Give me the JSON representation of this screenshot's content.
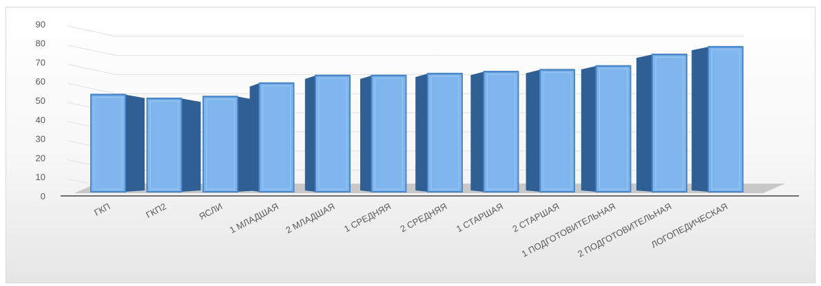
{
  "chart_data": {
    "type": "bar",
    "style": "3d-column",
    "title": "",
    "xlabel": "",
    "ylabel": "",
    "ylim": [
      0,
      90
    ],
    "yticks": [
      0,
      10,
      20,
      30,
      40,
      50,
      60,
      70,
      80,
      90
    ],
    "grid": true,
    "legend": "none",
    "categories": [
      "ГКП",
      "ГКП2",
      "ЯСЛИ",
      "1 МЛАДШАЯ",
      "2 МЛАДШАЯ",
      "1 СРЕДНЯЯ",
      "2 СРЕДНЯЯ",
      "1 СТАРШАЯ",
      "2 СТАРШАЯ",
      "1 ПОДГОТОВИТЕЛЬНАЯ",
      "2 ПОДГОТОВИТЕЛЬНАЯ",
      "ЛОГОПЕДИЧЕСКАЯ"
    ],
    "values": [
      53,
      51,
      52,
      59,
      63,
      63,
      64,
      65,
      66,
      68,
      74,
      78
    ],
    "colors": {
      "bar_front": "#7fb6ee",
      "bar_edge": "#4a86c8",
      "bar_side": "#2f5f93",
      "bar_top": "#a8cdf3",
      "floor": "#c8c8c8",
      "axis": "#404040",
      "grid": "#e0e0e0"
    }
  }
}
